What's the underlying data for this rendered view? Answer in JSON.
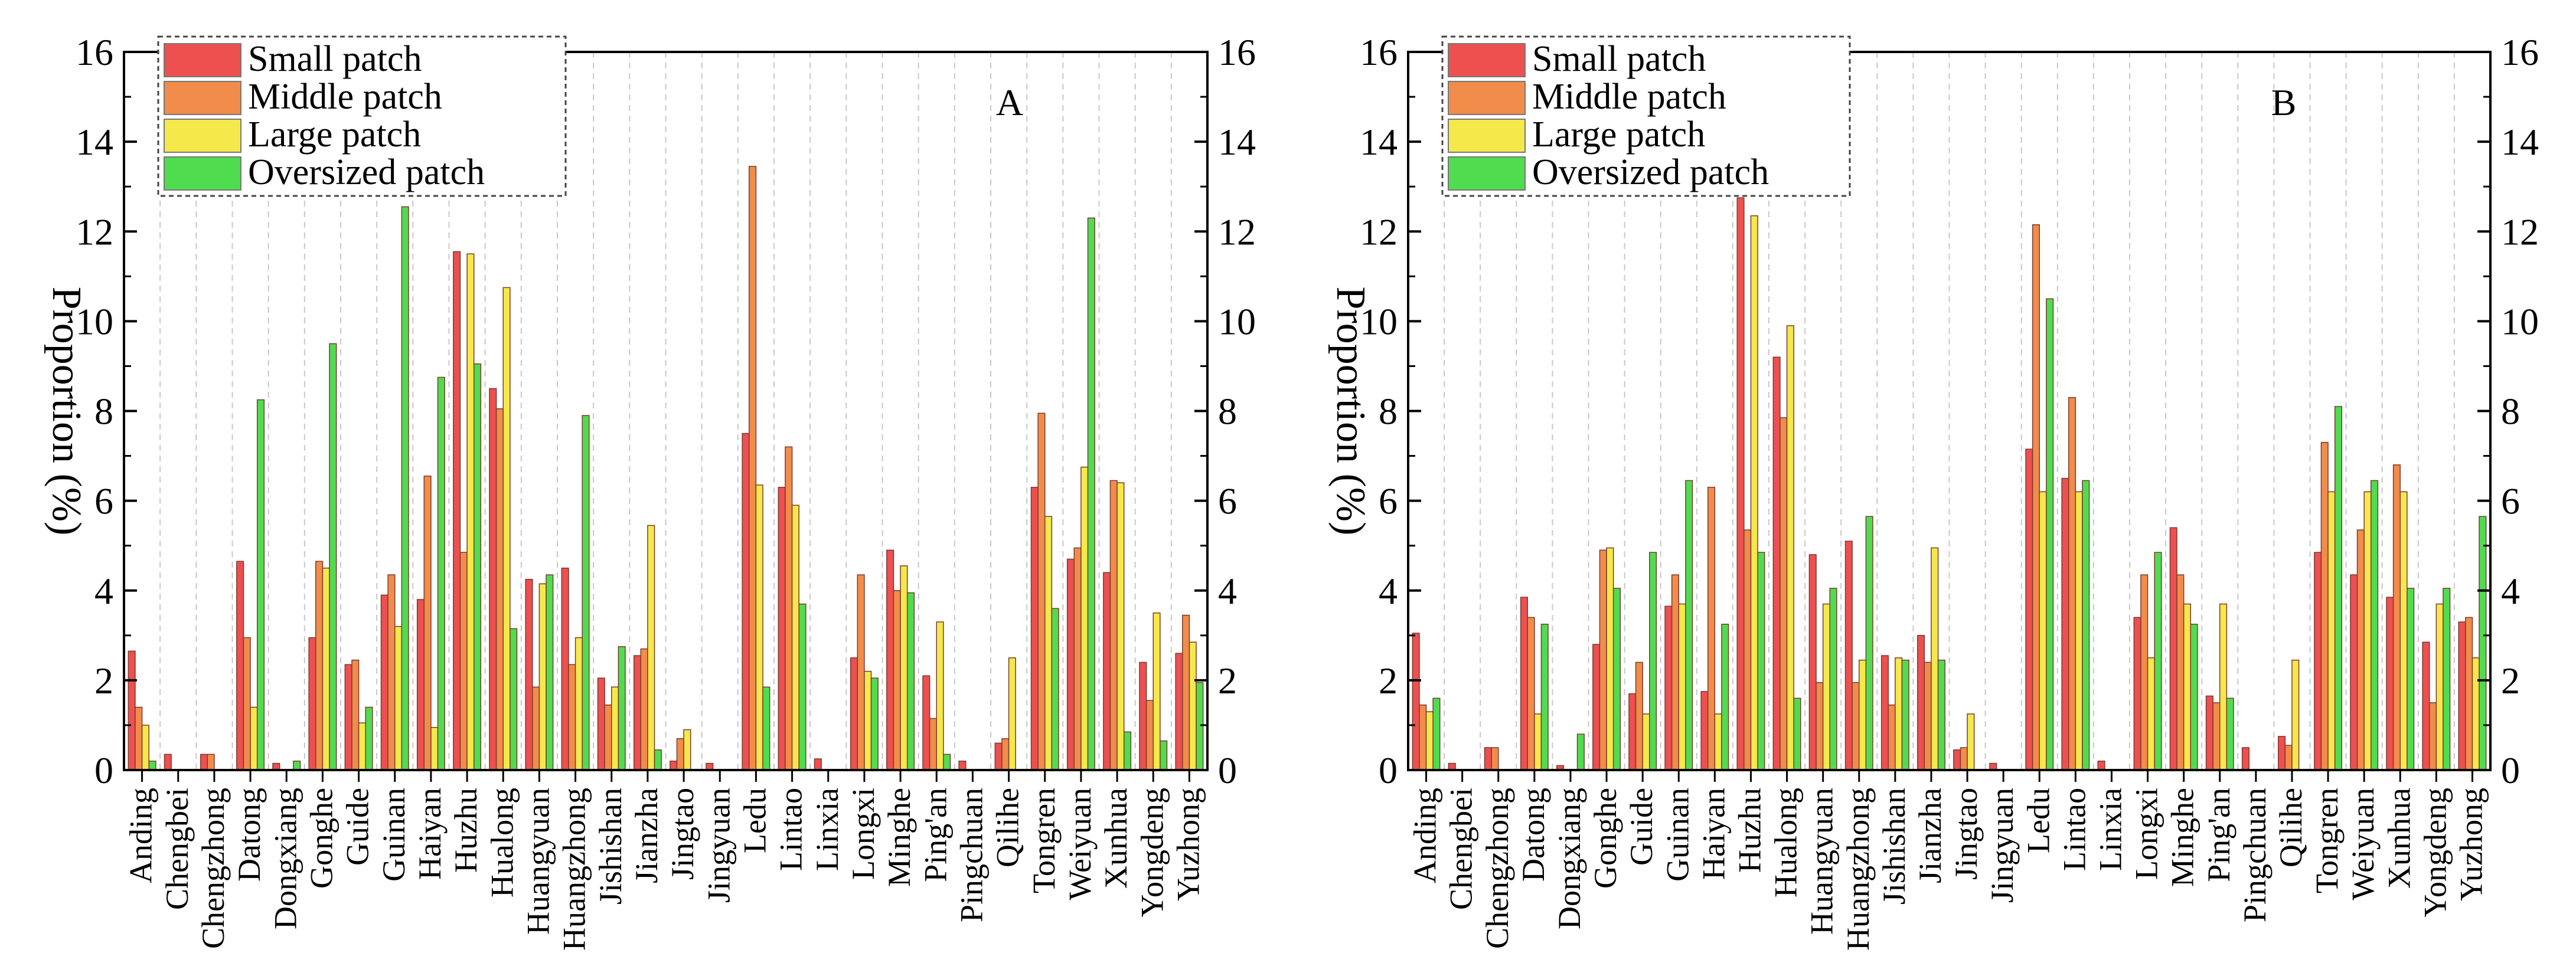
{
  "chart_data": [
    {
      "type": "bar",
      "panel_label": "A",
      "ylabel": "Proportion  (%)",
      "ylim": [
        0,
        16
      ],
      "yticks": [
        "0",
        "2",
        "4",
        "6",
        "8",
        "10",
        "12",
        "14",
        "16"
      ],
      "grid": "vertical dashed",
      "legend_position": "top-left",
      "categories": [
        "Anding",
        "Chengbei",
        "Chengzhong",
        "Datong",
        "Dongxiang",
        "Gonghe",
        "Guide",
        "Guinan",
        "Haiyan",
        "Huzhu",
        "Hualong",
        "Huangyuan",
        "Huangzhong",
        "Jishishan",
        "Jianzha",
        "Jingtao",
        "Jingyuan",
        "Ledu",
        "Lintao",
        "Linxia",
        "Longxi",
        "Minghe",
        "Ping'an",
        "Pingchuan",
        "Qilihe",
        "Tongren",
        "Weiyuan",
        "Xunhua",
        "Yongdeng",
        "Yuzhong"
      ],
      "series": [
        {
          "name": "Small patch",
          "color": "#ee4f4f",
          "values": [
            2.65,
            0.35,
            0.35,
            4.65,
            0.15,
            2.95,
            2.35,
            3.9,
            3.8,
            11.55,
            8.5,
            4.25,
            4.5,
            2.05,
            2.55,
            0.2,
            0.15,
            7.5,
            6.3,
            0.25,
            2.5,
            4.9,
            2.1,
            0.2,
            0.6,
            6.3,
            4.7,
            4.4,
            2.4,
            2.6
          ]
        },
        {
          "name": "Middle patch",
          "color": "#f28c4a",
          "values": [
            1.4,
            0.0,
            0.35,
            2.95,
            0.0,
            4.65,
            2.45,
            4.35,
            6.55,
            4.85,
            8.05,
            1.85,
            2.35,
            1.45,
            2.7,
            0.7,
            0.0,
            13.45,
            7.2,
            0.0,
            4.35,
            4.0,
            1.15,
            0.0,
            0.7,
            7.95,
            4.95,
            6.45,
            1.55,
            3.45
          ]
        },
        {
          "name": "Large patch",
          "color": "#f5e84a",
          "values": [
            1.0,
            0.0,
            0.0,
            1.4,
            0.0,
            4.5,
            1.05,
            3.2,
            0.95,
            11.5,
            10.75,
            4.15,
            2.95,
            1.85,
            5.45,
            0.9,
            0.0,
            6.35,
            5.9,
            0.0,
            2.2,
            4.55,
            3.3,
            0.0,
            2.5,
            5.65,
            6.75,
            6.4,
            3.5,
            2.85
          ]
        },
        {
          "name": "Oversized patch",
          "color": "#4fdd4f",
          "values": [
            0.2,
            0.0,
            0.0,
            8.25,
            0.2,
            9.5,
            1.4,
            12.55,
            8.75,
            9.05,
            3.15,
            4.35,
            7.9,
            2.75,
            0.45,
            0.0,
            0.0,
            1.85,
            3.7,
            0.0,
            2.05,
            3.95,
            0.35,
            0.0,
            0.0,
            3.6,
            12.3,
            0.85,
            0.65,
            1.95
          ]
        }
      ]
    },
    {
      "type": "bar",
      "panel_label": "B",
      "ylabel": "Proportion  (%)",
      "ylim": [
        0,
        16
      ],
      "yticks": [
        "0",
        "2",
        "4",
        "6",
        "8",
        "10",
        "12",
        "14",
        "16"
      ],
      "grid": "vertical dashed",
      "legend_position": "top-left",
      "categories": [
        "Anding",
        "Chengbei",
        "Chengzhong",
        "Datong",
        "Dongxiang",
        "Gonghe",
        "Guide",
        "Guinan",
        "Haiyan",
        "Huzhu",
        "Hualong",
        "Huangyuan",
        "Huangzhong",
        "Jishishan",
        "Jianzha",
        "Jingtao",
        "Jingyuan",
        "Ledu",
        "Lintao",
        "Linxia",
        "Longxi",
        "Minghe",
        "Ping'an",
        "Pingchuan",
        "Qilihe",
        "Tongren",
        "Weiyuan",
        "Xunhua",
        "Yongdeng",
        "Yuzhong"
      ],
      "series": [
        {
          "name": "Small patch",
          "color": "#ee4f4f",
          "values": [
            3.05,
            0.15,
            0.5,
            3.85,
            0.1,
            2.8,
            1.7,
            3.65,
            1.75,
            12.75,
            9.2,
            4.8,
            5.1,
            2.55,
            3.0,
            0.45,
            0.15,
            7.15,
            6.5,
            0.2,
            3.4,
            5.4,
            1.65,
            0.5,
            0.75,
            4.85,
            4.35,
            3.85,
            2.85,
            3.3
          ]
        },
        {
          "name": "Middle patch",
          "color": "#f28c4a",
          "values": [
            1.45,
            0.0,
            0.5,
            3.4,
            0.0,
            4.9,
            2.4,
            4.35,
            6.3,
            5.35,
            7.85,
            1.95,
            1.95,
            1.45,
            2.4,
            0.5,
            0.0,
            12.15,
            8.3,
            0.0,
            4.35,
            4.35,
            1.5,
            0.0,
            0.55,
            7.3,
            5.35,
            6.8,
            1.5,
            3.4
          ]
        },
        {
          "name": "Large patch",
          "color": "#f5e84a",
          "values": [
            1.3,
            0.0,
            0.0,
            1.25,
            0.0,
            4.95,
            1.25,
            3.7,
            1.25,
            12.35,
            9.9,
            3.7,
            2.45,
            2.5,
            4.95,
            1.25,
            0.0,
            6.2,
            6.2,
            0.0,
            2.5,
            3.7,
            3.7,
            0.0,
            2.45,
            6.2,
            6.2,
            6.2,
            3.7,
            2.5
          ]
        },
        {
          "name": "Oversized patch",
          "color": "#4fdd4f",
          "values": [
            1.6,
            0.0,
            0.0,
            3.25,
            0.8,
            4.05,
            4.85,
            6.45,
            3.25,
            4.85,
            1.6,
            4.05,
            5.65,
            2.45,
            2.45,
            0.0,
            0.0,
            10.5,
            6.45,
            0.0,
            4.85,
            3.25,
            1.6,
            0.0,
            0.0,
            8.1,
            6.45,
            4.05,
            4.05,
            5.65
          ]
        }
      ]
    }
  ]
}
